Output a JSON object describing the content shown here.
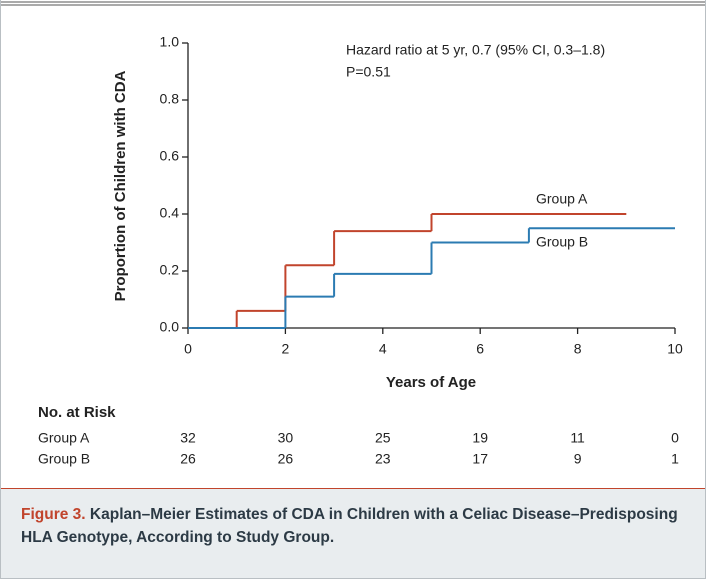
{
  "chart_data": {
    "type": "step",
    "annotations": [
      "Hazard ratio at 5 yr, 0.7 (95% CI, 0.3–1.8)",
      "P=0.51"
    ],
    "xlabel": "Years of Age",
    "ylabel": "Proportion of Children with CDA",
    "xlim": [
      0,
      10
    ],
    "xticks": [
      0,
      2,
      4,
      6,
      8,
      10
    ],
    "ylim": [
      0,
      1.0
    ],
    "yticks": [
      {
        "value": 0,
        "label": "0.0"
      },
      {
        "value": 0.2,
        "label": "0.2"
      },
      {
        "value": 0.4,
        "label": "0.4"
      },
      {
        "value": 0.6,
        "label": "0.6"
      },
      {
        "value": 0.8,
        "label": "0.8"
      },
      {
        "value": 1.0,
        "label": "1.0"
      }
    ],
    "grid": false,
    "series": [
      {
        "name": "Group A",
        "color": "#c1442c",
        "x": [
          0,
          1,
          2,
          3,
          5,
          9
        ],
        "values": [
          0,
          0.06,
          0.22,
          0.34,
          0.4,
          0.4
        ],
        "at_risk": [
          32,
          30,
          25,
          19,
          11,
          0
        ]
      },
      {
        "name": "Group B",
        "color": "#2b7bb2",
        "x": [
          0,
          2,
          3,
          5,
          7,
          10
        ],
        "values": [
          0,
          0.11,
          0.19,
          0.3,
          0.35,
          0.35
        ],
        "at_risk": [
          26,
          26,
          23,
          17,
          9,
          1
        ]
      }
    ],
    "risk_table_title": "No. at Risk",
    "caption": {
      "label": "Figure 3.",
      "text": "Kaplan–Meier Estimates of CDA in Children with a Celiac Disease–Predisposing HLA Genotype, According to Study Group."
    }
  }
}
